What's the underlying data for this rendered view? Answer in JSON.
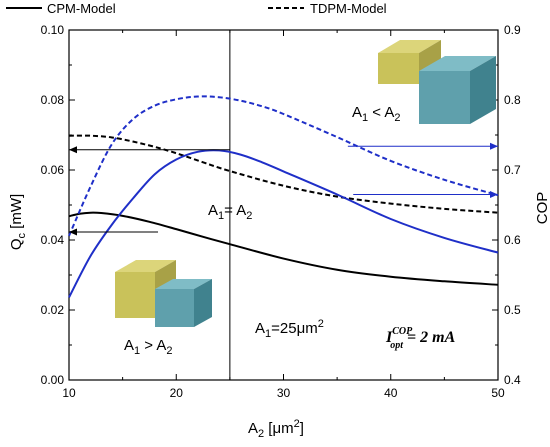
{
  "chart_data": {
    "type": "line",
    "xlabel": "A₂ [μm²]",
    "ylabel_left": "Q_c [mW]",
    "ylabel_right": "COP",
    "xlim": [
      10,
      50
    ],
    "ylim_left": [
      0.0,
      0.1
    ],
    "ylim_right": [
      0.4,
      0.9
    ],
    "xticks": [
      10,
      20,
      30,
      40,
      50
    ],
    "yticks_left": [
      0.0,
      0.02,
      0.04,
      0.06,
      0.08,
      0.1
    ],
    "yticks_right": [
      0.4,
      0.5,
      0.6,
      0.7,
      0.8,
      0.9
    ],
    "xtick_labels": [
      "10",
      "20",
      "30",
      "40",
      "50"
    ],
    "ytick_left_labels": [
      "0.00",
      "0.02",
      "0.04",
      "0.06",
      "0.08",
      "0.10"
    ],
    "ytick_right_labels": [
      "0.4",
      "0.5",
      "0.6",
      "0.7",
      "0.8",
      "0.9"
    ],
    "legend": [
      {
        "label": "CPM-Model",
        "style": "solid"
      },
      {
        "label": "TDPM-Model",
        "style": "dashed"
      }
    ],
    "series": [
      {
        "model": "CPM-Model",
        "quantity": "Qc",
        "axis": "left",
        "color": "#000000",
        "dash": "solid",
        "x": [
          10,
          11,
          12,
          13,
          15,
          17.5,
          20,
          22.5,
          25,
          30,
          35,
          40,
          45,
          50
        ],
        "y": [
          0.0468,
          0.0475,
          0.0478,
          0.0477,
          0.0469,
          0.0452,
          0.0431,
          0.0409,
          0.0388,
          0.0347,
          0.0315,
          0.0295,
          0.0282,
          0.0272
        ]
      },
      {
        "model": "TDPM-Model",
        "quantity": "Qc",
        "axis": "left",
        "color": "#000000",
        "dash": "dashed",
        "x": [
          10,
          12,
          14,
          16,
          18,
          20,
          22.5,
          25,
          30,
          35,
          40,
          45,
          50
        ],
        "y": [
          0.0698,
          0.0698,
          0.0693,
          0.0681,
          0.0666,
          0.0648,
          0.0622,
          0.0597,
          0.0555,
          0.0524,
          0.0504,
          0.0489,
          0.0478
        ]
      },
      {
        "model": "CPM-Model",
        "quantity": "COP",
        "axis": "right",
        "color": "#1f2fc8",
        "dash": "solid",
        "x": [
          10,
          12,
          14,
          16,
          18,
          20,
          22,
          24,
          26,
          28,
          30,
          35,
          40,
          45,
          50
        ],
        "y": [
          0.518,
          0.577,
          0.622,
          0.66,
          0.694,
          0.715,
          0.726,
          0.728,
          0.722,
          0.711,
          0.698,
          0.665,
          0.63,
          0.603,
          0.582
        ]
      },
      {
        "model": "TDPM-Model",
        "quantity": "COP",
        "axis": "right",
        "color": "#1f2fc8",
        "dash": "dashed",
        "x": [
          10,
          12,
          14,
          16,
          18,
          20,
          22,
          24,
          26,
          28,
          30,
          35,
          40,
          45,
          50
        ],
        "y": [
          0.606,
          0.676,
          0.737,
          0.773,
          0.792,
          0.801,
          0.805,
          0.804,
          0.799,
          0.791,
          0.78,
          0.747,
          0.713,
          0.686,
          0.664
        ]
      }
    ],
    "vertical_line": {
      "x": 25
    },
    "arrows": [
      {
        "direction": "left",
        "color": "#000000",
        "from": [
          18.3,
          0.0423
        ],
        "to": [
          10.0,
          0.0423
        ]
      },
      {
        "direction": "left",
        "color": "#000000",
        "from": [
          25.0,
          0.0658
        ],
        "to": [
          10.0,
          0.0658
        ]
      },
      {
        "direction": "right",
        "color": "#1f2fc8",
        "from": [
          36.0,
          0.734
        ],
        "to": [
          50.0,
          0.734
        ]
      },
      {
        "direction": "right",
        "color": "#1f2fc8",
        "from": [
          36.5,
          0.665
        ],
        "to": [
          50.0,
          0.665
        ]
      }
    ],
    "annotations": {
      "a1_less": {
        "main": "A",
        "sub1": "1",
        "mid": " < A",
        "sub2": "2"
      },
      "a1_equal": {
        "main": "A",
        "sub1": "1",
        "mid": "= A",
        "sub2": "2"
      },
      "a1_greater": {
        "main": "A",
        "sub1": "1",
        "mid": " > A",
        "sub2": "2"
      },
      "a1_value": {
        "main": "A",
        "sub1": "1",
        "mid": "=25μm",
        "sup": "2"
      },
      "current": {
        "I": "I",
        "sup": "COP",
        "sub": "opt",
        "rest": " = 2 mA"
      }
    },
    "illustration_colors": {
      "block_a": "#c9c25a",
      "block_b": "#5fa0ac"
    }
  }
}
